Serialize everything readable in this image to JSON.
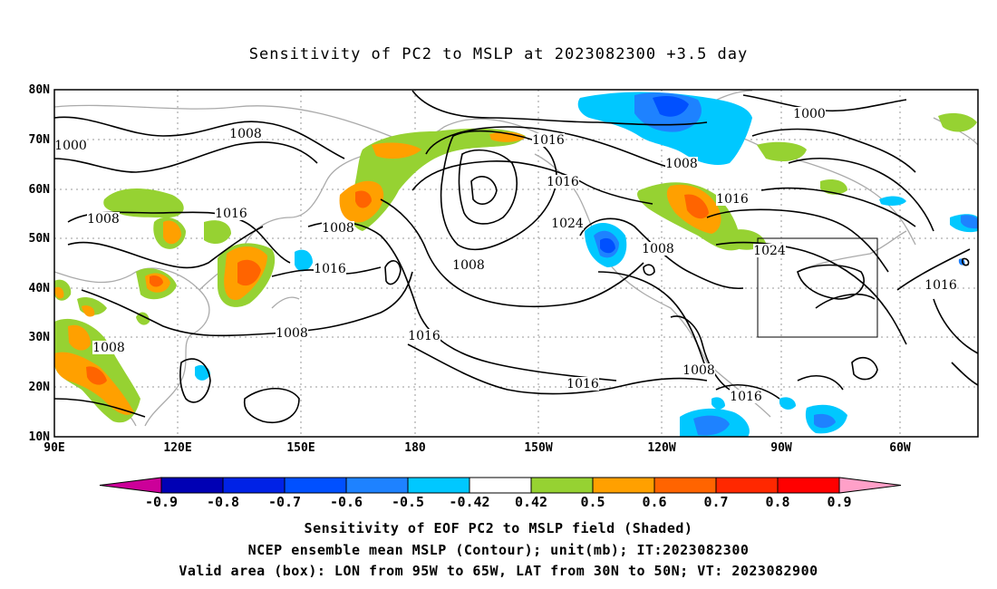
{
  "title": "Sensitivity of PC2 to MSLP at 2023082300 +3.5 day",
  "map": {
    "lon_ticks": [
      "90E",
      "120E",
      "150E",
      "180",
      "150W",
      "120W",
      "90W",
      "60W"
    ],
    "lat_ticks": [
      "80N",
      "70N",
      "60N",
      "50N",
      "40N",
      "30N",
      "20N",
      "10N"
    ],
    "contour_labels": [
      "1000",
      "1008",
      "1008",
      "1016",
      "1008",
      "1016",
      "1008",
      "1008",
      "1016",
      "1016",
      "1008",
      "1024",
      "1016",
      "1008",
      "1000",
      "1008",
      "1016",
      "1024",
      "1016",
      "1016",
      "1008",
      "1016"
    ],
    "valid_box": {
      "lon_west": "95W",
      "lon_east": "65W",
      "lat_south": "30N",
      "lat_north": "50N"
    }
  },
  "colorbar": {
    "labels": [
      "-0.9",
      "-0.8",
      "-0.7",
      "-0.6",
      "-0.5",
      "-0.42",
      "0.42",
      "0.5",
      "0.6",
      "0.7",
      "0.8",
      "0.9"
    ],
    "colors": [
      "#cc0099",
      "#0000b4",
      "#0022e6",
      "#0050ff",
      "#1e82ff",
      "#00c8ff",
      "#ffffff",
      "#96d232",
      "#ffa000",
      "#ff6400",
      "#ff2800",
      "#ff0000",
      "#ffa0c8"
    ]
  },
  "captions": {
    "line1": "Sensitivity of EOF PC2 to MSLP field (Shaded)",
    "line2": "NCEP ensemble mean MSLP (Contour); unit(mb); IT:2023082300",
    "line3": "Valid area (box): LON from 95W to 65W, LAT from 30N to 50N; VT: 2023082900"
  }
}
